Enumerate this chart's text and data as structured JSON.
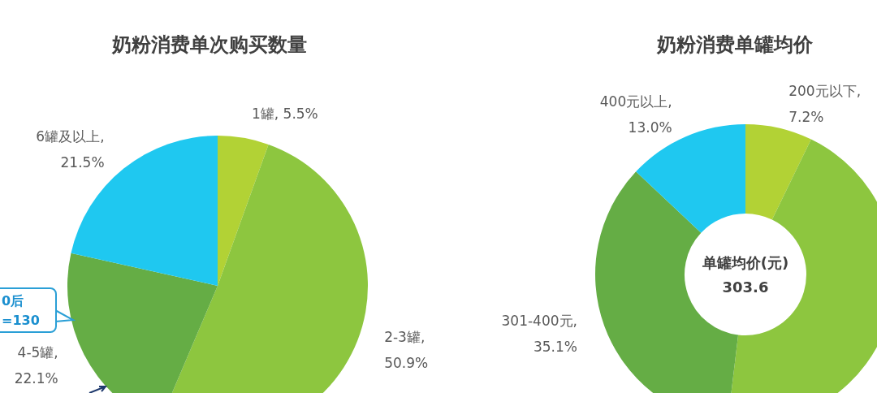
{
  "chart_data": [
    {
      "type": "pie",
      "title": "奶粉消费单次购买数量",
      "categories": [
        null,
        null,
        null,
        null
      ],
      "values": [
        5.5,
        50.9,
        22.1,
        21.5
      ],
      "value_labels": [
        "1罐, 5.5%",
        "2-3罐,\n50.9%",
        "4-5罐,\n22.1%",
        "6罐及以上,\n21.5%"
      ],
      "colors": [
        "#b2d235",
        "#8dc63f",
        "#65ad45",
        "#1fc8f0"
      ],
      "annotations": [
        "0后\n=130"
      ]
    },
    {
      "type": "donut",
      "title": "奶粉消费单罐均价",
      "categories": [
        null,
        null,
        null,
        null
      ],
      "values": [
        7.2,
        44.7,
        35.1,
        13.0
      ],
      "value_labels": [
        "200元以下,\n7.2%",
        null,
        "301-400元,\n35.1%",
        "400元以上,\n13.0%"
      ],
      "colors": [
        "#b2d235",
        "#8dc63f",
        "#65ad45",
        "#1fc8f0"
      ],
      "annotations": [
        "单罐均价(元)\n303.6"
      ]
    }
  ]
}
